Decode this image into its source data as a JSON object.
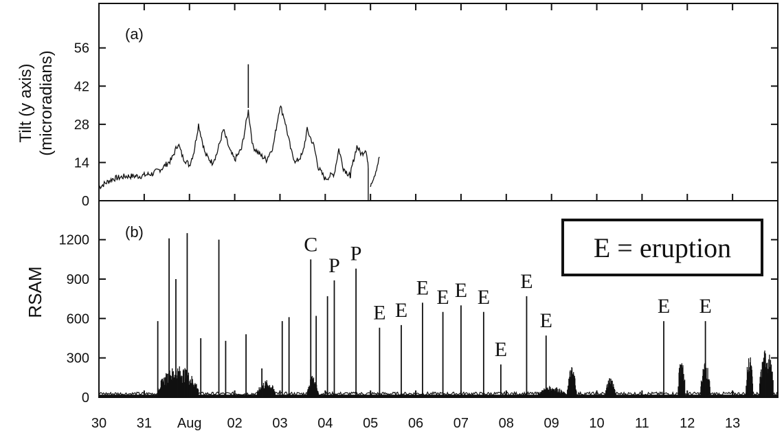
{
  "chart_data": [
    {
      "panel": "(a)",
      "type": "line",
      "ylabel": [
        "Tilt (y axis)",
        "(microradians)"
      ],
      "y_ticks": [
        "0",
        "14",
        "28",
        "42",
        "56"
      ],
      "ylim": [
        0,
        66
      ],
      "xlim": [
        0,
        15
      ],
      "series": [
        {
          "segments": [
            {
              "x": [
                0.0,
                0.3,
                0.6,
                0.9,
                1.2,
                1.4,
                1.6,
                1.75,
                1.85,
                2.0,
                2.1,
                2.2,
                2.35,
                2.5,
                2.6,
                2.75,
                2.9,
                3.0,
                3.15,
                3.3,
                3.4,
                3.55,
                3.7,
                3.85,
                4.0,
                4.1,
                4.25,
                4.35,
                4.5,
                4.6,
                4.75,
                4.85,
                5.0,
                5.2,
                5.3,
                5.4,
                5.5,
                5.55,
                5.6,
                5.7,
                5.8,
                5.9,
                5.95
              ],
              "y": [
                5,
                8,
                9,
                9,
                10,
                12,
                15,
                21,
                16,
                13,
                18,
                28,
                17,
                14,
                17,
                26,
                18,
                15,
                19,
                33,
                20,
                17,
                15,
                20,
                35,
                30,
                18,
                14,
                17,
                26,
                20,
                12,
                8,
                10,
                19,
                12,
                10,
                9,
                13,
                20,
                17,
                19,
                12
              ]
            },
            {
              "x": [
                6.0,
                6.1,
                6.2
              ],
              "y": [
                6,
                10,
                16
              ]
            }
          ]
        }
      ],
      "annotations": [
        {
          "x": 3.3,
          "y": 50,
          "type": "spike"
        }
      ]
    },
    {
      "panel": "(b)",
      "type": "line",
      "ylabel": "RSAM",
      "y_ticks": [
        "0",
        "300",
        "600",
        "900",
        "1200"
      ],
      "ylim": [
        0,
        1350
      ],
      "xlim": [
        0,
        15
      ],
      "x_tick_labels": [
        "30",
        "31",
        "Aug",
        "02",
        "03",
        "04",
        "05",
        "06",
        "07",
        "08",
        "09",
        "10",
        "11",
        "12",
        "13"
      ],
      "spikes": [
        {
          "x": 1.3,
          "y": 580
        },
        {
          "x": 1.55,
          "y": 1210
        },
        {
          "x": 1.7,
          "y": 900
        },
        {
          "x": 1.95,
          "y": 1250
        },
        {
          "x": 2.25,
          "y": 450
        },
        {
          "x": 2.65,
          "y": 1200
        },
        {
          "x": 2.8,
          "y": 430
        },
        {
          "x": 3.25,
          "y": 480
        },
        {
          "x": 3.6,
          "y": 220
        },
        {
          "x": 4.05,
          "y": 580
        },
        {
          "x": 4.2,
          "y": 610
        },
        {
          "x": 4.68,
          "y": 1050
        },
        {
          "x": 4.8,
          "y": 620
        },
        {
          "x": 5.05,
          "y": 770
        },
        {
          "x": 5.2,
          "y": 890
        },
        {
          "x": 5.68,
          "y": 980
        },
        {
          "x": 6.2,
          "y": 530
        },
        {
          "x": 6.68,
          "y": 550
        },
        {
          "x": 7.15,
          "y": 720
        },
        {
          "x": 7.6,
          "y": 650
        },
        {
          "x": 8.0,
          "y": 700
        },
        {
          "x": 8.5,
          "y": 650
        },
        {
          "x": 8.88,
          "y": 250
        },
        {
          "x": 9.45,
          "y": 770
        },
        {
          "x": 9.88,
          "y": 470
        },
        {
          "x": 12.48,
          "y": 580
        },
        {
          "x": 13.4,
          "y": 580
        }
      ],
      "bursts": [
        {
          "from": 1.3,
          "to": 2.2,
          "height": 220
        },
        {
          "from": 3.5,
          "to": 3.9,
          "height": 120
        },
        {
          "from": 4.6,
          "to": 4.85,
          "height": 150
        },
        {
          "from": 9.7,
          "to": 10.3,
          "height": 80
        },
        {
          "from": 10.35,
          "to": 10.55,
          "height": 220
        },
        {
          "from": 11.2,
          "to": 11.4,
          "height": 150
        },
        {
          "from": 12.8,
          "to": 12.95,
          "height": 300
        },
        {
          "from": 13.3,
          "to": 13.5,
          "height": 270
        },
        {
          "from": 14.3,
          "to": 14.45,
          "height": 300
        },
        {
          "from": 14.6,
          "to": 14.9,
          "height": 350
        }
      ],
      "annotations": [
        {
          "text": "C",
          "x": 4.68
        },
        {
          "text": "P",
          "x": 5.2
        },
        {
          "text": "P",
          "x": 5.68
        },
        {
          "text": "E",
          "x": 6.2
        },
        {
          "text": "E",
          "x": 6.68
        },
        {
          "text": "E",
          "x": 7.15
        },
        {
          "text": "E",
          "x": 7.6
        },
        {
          "text": "E",
          "x": 8.0
        },
        {
          "text": "E",
          "x": 8.5
        },
        {
          "text": "E",
          "x": 8.88
        },
        {
          "text": "E",
          "x": 9.45
        },
        {
          "text": "E",
          "x": 9.88
        },
        {
          "text": "E",
          "x": 12.48
        },
        {
          "text": "E",
          "x": 13.4
        }
      ],
      "legend_text": "E = eruption"
    }
  ]
}
